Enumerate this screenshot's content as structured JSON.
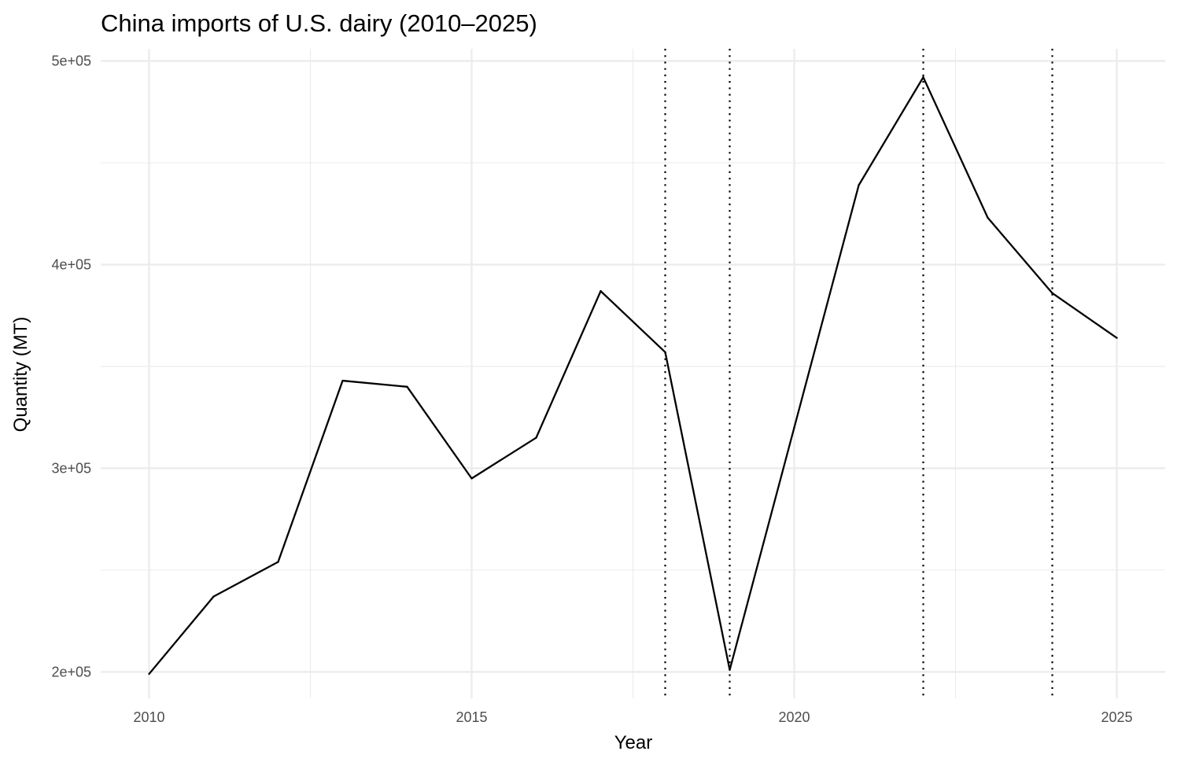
{
  "chart_data": {
    "type": "line",
    "title": "China imports of U.S. dairy (2010–2025)",
    "xlabel": "Year",
    "ylabel": "Quantity (MT)",
    "xlim": [
      2009.25,
      2025.75
    ],
    "ylim": [
      187000,
      506000
    ],
    "x_ticks": [
      {
        "value": 2010,
        "label": "2010"
      },
      {
        "value": 2015,
        "label": "2015"
      },
      {
        "value": 2020,
        "label": "2020"
      },
      {
        "value": 2025,
        "label": "2025"
      }
    ],
    "x_minor_ticks": [
      2012.5,
      2017.5,
      2022.5
    ],
    "y_ticks": [
      {
        "value": 200000,
        "label": "2e+05"
      },
      {
        "value": 300000,
        "label": "3e+05"
      },
      {
        "value": 400000,
        "label": "4e+05"
      },
      {
        "value": 500000,
        "label": "5e+05"
      }
    ],
    "y_minor_ticks": [
      250000,
      350000,
      450000
    ],
    "grid": true,
    "legend": "none",
    "series": [
      {
        "x": [
          2010,
          2011,
          2012,
          2013,
          2014,
          2015,
          2016,
          2017,
          2018,
          2019,
          2020,
          2021,
          2022,
          2023,
          2024,
          2025
        ],
        "values": [
          199000,
          237000,
          254000,
          343000,
          340000,
          295000,
          315000,
          387000,
          357000,
          201000,
          320000,
          439000,
          492000,
          423000,
          386000,
          364000
        ],
        "color": "#000000"
      }
    ],
    "vertical_lines": [
      {
        "x": 2018,
        "style": "dotted",
        "color": "#000000"
      },
      {
        "x": 2019,
        "style": "dotted",
        "color": "#000000"
      },
      {
        "x": 2022,
        "style": "dotted",
        "color": "#000000"
      },
      {
        "x": 2024,
        "style": "dotted",
        "color": "#000000"
      }
    ]
  }
}
